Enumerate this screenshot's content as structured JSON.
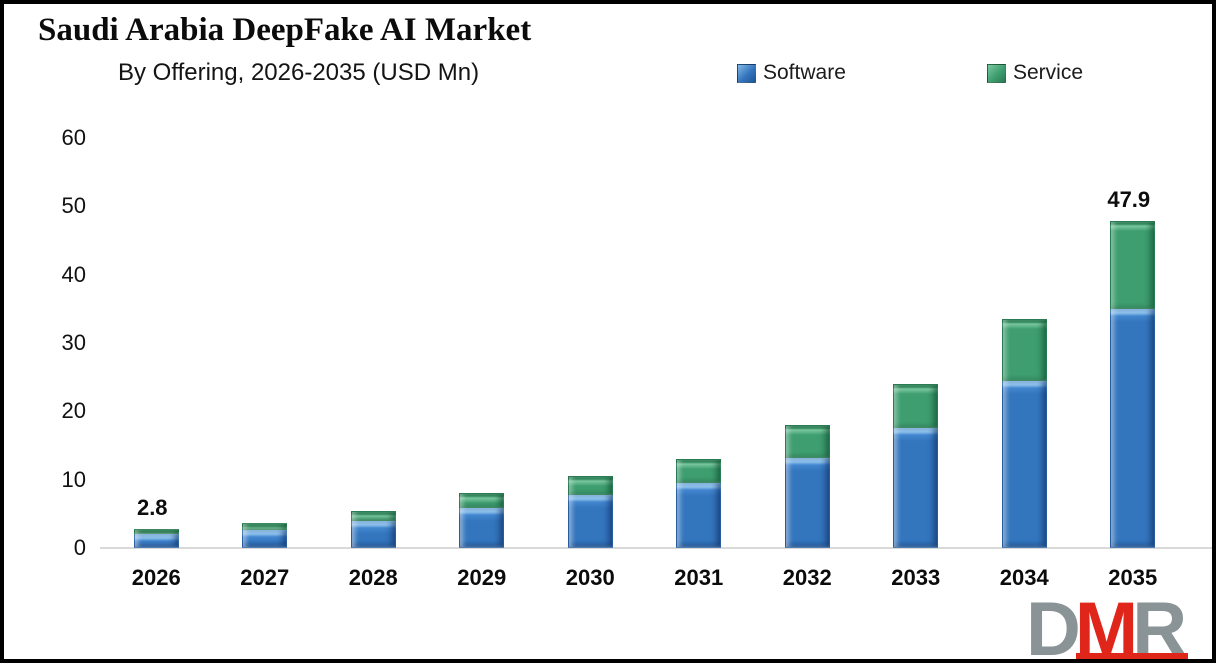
{
  "header": {
    "title": "Saudi Arabia DeepFake AI Market",
    "subtitle": "By Offering, 2026-2035 (USD Mn)"
  },
  "legend": {
    "items": [
      {
        "label": "Software",
        "color": "#3476BE"
      },
      {
        "label": "Service",
        "color": "#3E9E70"
      }
    ]
  },
  "chart_data": {
    "type": "bar",
    "stacked": true,
    "title": "Saudi Arabia DeepFake AI Market",
    "subtitle": "By Offering, 2026-2035 (USD Mn)",
    "categories": [
      "2026",
      "2027",
      "2028",
      "2029",
      "2030",
      "2031",
      "2032",
      "2033",
      "2034",
      "2035"
    ],
    "series": [
      {
        "name": "Software",
        "color": "#3476BE",
        "values": [
          2.0,
          2.6,
          3.9,
          5.8,
          7.7,
          9.5,
          13.1,
          17.5,
          24.5,
          35.0
        ]
      },
      {
        "name": "Service",
        "color": "#3E9E70",
        "values": [
          0.8,
          1.0,
          1.5,
          2.2,
          2.8,
          3.5,
          4.9,
          6.5,
          9.0,
          12.9
        ]
      }
    ],
    "totals": [
      2.8,
      3.6,
      5.4,
      8.0,
      10.5,
      13.0,
      18.0,
      24.0,
      33.5,
      47.9
    ],
    "data_labels": {
      "2026": "2.8",
      "2035": "47.9"
    },
    "xlabel": "",
    "ylabel": "",
    "ylim": [
      0,
      60
    ],
    "yticks": [
      0,
      10,
      20,
      30,
      40,
      50,
      60
    ],
    "grid": false,
    "legend_position": "top-right"
  },
  "logo": {
    "letters": [
      {
        "text": "D",
        "color": "#8A9396"
      },
      {
        "text": "M",
        "color": "#E0251B"
      },
      {
        "text": "R",
        "color": "#8A9396"
      }
    ],
    "bar_color": "#E0251B"
  },
  "colors": {
    "axis_line": "#D9D9D9",
    "text": "#111111",
    "background": "#FFFFFF",
    "border": "#000000"
  }
}
